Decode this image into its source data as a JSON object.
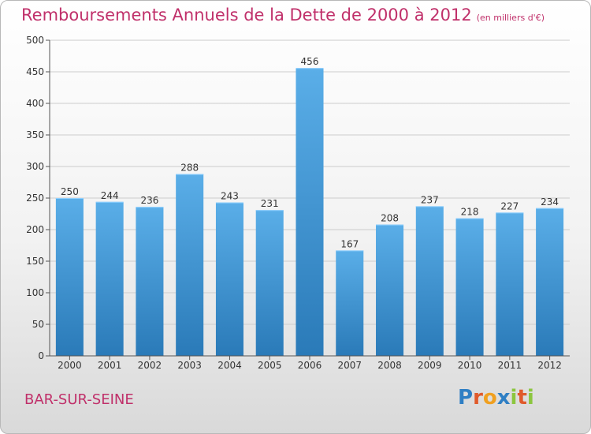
{
  "title": "Remboursements Annuels de la Dette de 2000 à 2012",
  "subtitle": "(en milliers d'€)",
  "commune": "BAR-SUR-SEINE",
  "logo": {
    "text": "Proxiti",
    "letters": [
      "P",
      "r",
      "o",
      "x",
      "i",
      "t",
      "i"
    ],
    "colors": [
      "#2f7fc4",
      "#e05a2b",
      "#f0a020",
      "#2f7fc4",
      "#8cc63f",
      "#e05a2b",
      "#8cc63f"
    ]
  },
  "colors": {
    "bar_top": "#5aaee8",
    "bar_bottom": "#2a7ab8",
    "title": "#c0306a",
    "grid": "#cccccc"
  },
  "chart_data": {
    "type": "bar",
    "categories": [
      "2000",
      "2001",
      "2002",
      "2003",
      "2004",
      "2005",
      "2006",
      "2007",
      "2008",
      "2009",
      "2010",
      "2011",
      "2012"
    ],
    "values": [
      250,
      244,
      236,
      288,
      243,
      231,
      456,
      167,
      208,
      237,
      218,
      227,
      234
    ],
    "ylim": [
      0,
      500
    ],
    "yticks": [
      0,
      50,
      100,
      150,
      200,
      250,
      300,
      350,
      400,
      450,
      500
    ],
    "grid": true
  }
}
